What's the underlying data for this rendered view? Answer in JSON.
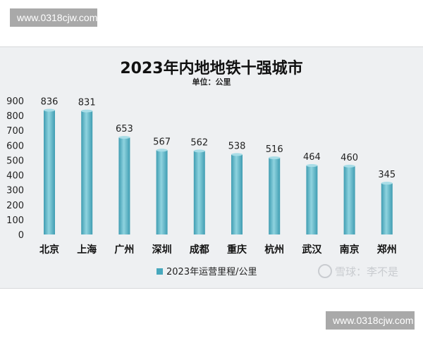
{
  "watermark": {
    "text": "www.0318cjw.com"
  },
  "credit": {
    "text": "雪球：李不是"
  },
  "colors": {
    "bar": "#47a8bd",
    "bar_light": "#8fd3df",
    "panel": "#eef0f2"
  },
  "chart_data": {
    "type": "bar",
    "title": "2023年内地地铁十强城市",
    "subtitle": "单位：公里",
    "categories": [
      "北京",
      "上海",
      "广州",
      "深圳",
      "成都",
      "重庆",
      "杭州",
      "武汉",
      "南京",
      "郑州"
    ],
    "series": [
      {
        "name": "2023年运营里程/公里",
        "values": [
          836,
          831,
          653,
          567,
          562,
          538,
          516,
          464,
          460,
          345
        ]
      }
    ],
    "ylim": [
      0,
      900
    ],
    "yticks": [
      0,
      100,
      200,
      300,
      400,
      500,
      600,
      700,
      800,
      900
    ],
    "grid": false,
    "legend": "bottom"
  }
}
